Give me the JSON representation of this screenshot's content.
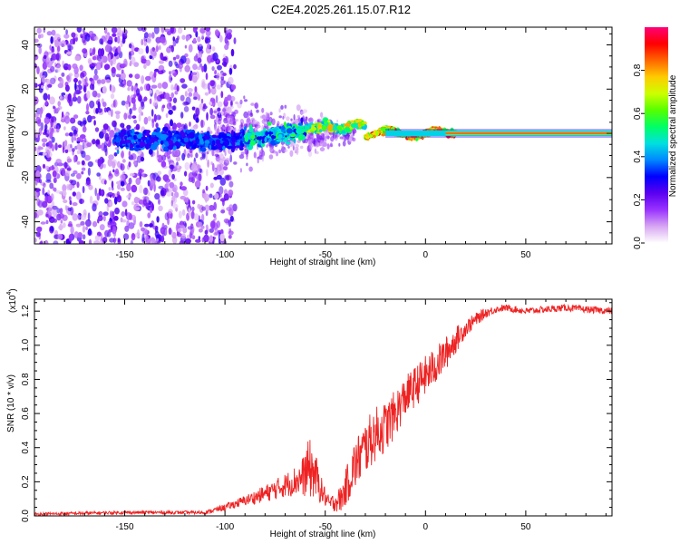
{
  "title": "C2E4.2025.261.15.07.R12",
  "chart_data": [
    {
      "type": "heatmap",
      "name": "spectrogram",
      "xlabel": "Height of straight line (km)",
      "ylabel": "Frequency (Hz)",
      "xlim": [
        -195,
        93
      ],
      "ylim": [
        -50,
        48
      ],
      "xticks": [
        -150,
        -100,
        -50,
        0,
        50
      ],
      "yticks": [
        -40,
        -20,
        0,
        20,
        40
      ],
      "colorbar": {
        "label": "Normalized spectral amplitude",
        "range": [
          0,
          1
        ],
        "ticks": [
          "0.0",
          "0.2",
          "0.4",
          "0.6",
          "0.8"
        ],
        "colors": [
          "#ffffff",
          "#d7a6f2",
          "#9933ff",
          "#5a00f0",
          "#0000ff",
          "#0088ff",
          "#00e0e0",
          "#00ff66",
          "#55ff00",
          "#ccff00",
          "#ffcc00",
          "#ff6600",
          "#ff0000",
          "#ff0077"
        ]
      },
      "features": {
        "carrier_frequency_hz": 0,
        "noise_region_km": [
          -195,
          -100
        ],
        "transition_region_km": [
          -100,
          10
        ],
        "clean_carrier_from_km": 10
      }
    },
    {
      "type": "line",
      "name": "snr",
      "xlabel": "Height of straight line (km)",
      "ylabel": "SNR (10 * v/v)",
      "multiplier": "(x10",
      "multiplier_exp": "4",
      "multiplier_close": ")",
      "xlim": [
        -195,
        93
      ],
      "ylim": [
        0,
        1.27
      ],
      "xticks": [
        -150,
        -100,
        -50,
        0,
        50
      ],
      "yticks": [
        "0.0",
        "0.2",
        "0.4",
        "0.6",
        "0.8",
        "1.0",
        "1.2"
      ],
      "series": [
        {
          "name": "SNR",
          "color": "#ee2222",
          "x": [
            -195,
            -150,
            -110,
            -100,
            -90,
            -80,
            -70,
            -62,
            -58,
            -55,
            -52,
            -48,
            -42,
            -36,
            -30,
            -25,
            -20,
            -15,
            -10,
            -5,
            0,
            5,
            10,
            15,
            20,
            25,
            30,
            35,
            40,
            50,
            60,
            70,
            80,
            93
          ],
          "y": [
            0.01,
            0.02,
            0.02,
            0.05,
            0.09,
            0.13,
            0.18,
            0.22,
            0.28,
            0.24,
            0.15,
            0.07,
            0.1,
            0.28,
            0.4,
            0.48,
            0.52,
            0.6,
            0.7,
            0.76,
            0.82,
            0.88,
            0.95,
            1.03,
            1.1,
            1.15,
            1.19,
            1.21,
            1.22,
            1.2,
            1.21,
            1.22,
            1.21,
            1.2
          ],
          "noise": [
            0.01,
            0.01,
            0.01,
            0.02,
            0.03,
            0.05,
            0.07,
            0.1,
            0.18,
            0.14,
            0.08,
            0.04,
            0.08,
            0.15,
            0.16,
            0.16,
            0.15,
            0.14,
            0.12,
            0.12,
            0.12,
            0.11,
            0.1,
            0.08,
            0.05,
            0.04,
            0.03,
            0.02,
            0.02,
            0.02,
            0.02,
            0.02,
            0.02,
            0.02
          ]
        }
      ]
    }
  ]
}
